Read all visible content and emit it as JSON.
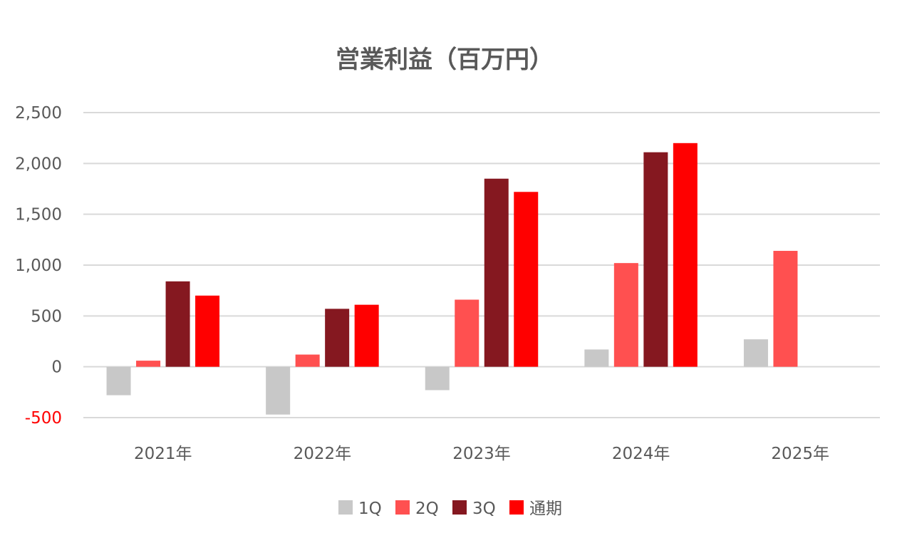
{
  "chart_data": {
    "type": "bar",
    "title": "営業利益（百万円）",
    "xlabel": "",
    "ylabel": "",
    "categories": [
      "2021年",
      "2022年",
      "2023年",
      "2024年",
      "2025年"
    ],
    "series": [
      {
        "name": "1Q",
        "color": "#c8c8c8",
        "values": [
          -280,
          -470,
          -230,
          170,
          270
        ]
      },
      {
        "name": "2Q",
        "color": "#ff5050",
        "values": [
          60,
          120,
          660,
          1020,
          1140
        ]
      },
      {
        "name": "3Q",
        "color": "#851820",
        "values": [
          840,
          570,
          1850,
          2110,
          null
        ]
      },
      {
        "name": "通期",
        "color": "#ff0000",
        "values": [
          700,
          610,
          1720,
          2200,
          null
        ]
      }
    ],
    "ylim": [
      -500,
      2500
    ],
    "yticks": [
      -500,
      0,
      500,
      1000,
      1500,
      2000,
      2500
    ],
    "ytick_labels": [
      "-500",
      "0",
      "500",
      "1,000",
      "1,500",
      "2,000",
      "2,500"
    ],
    "negative_tick_color": "#ff0000",
    "grid": true,
    "legend_position": "bottom"
  }
}
